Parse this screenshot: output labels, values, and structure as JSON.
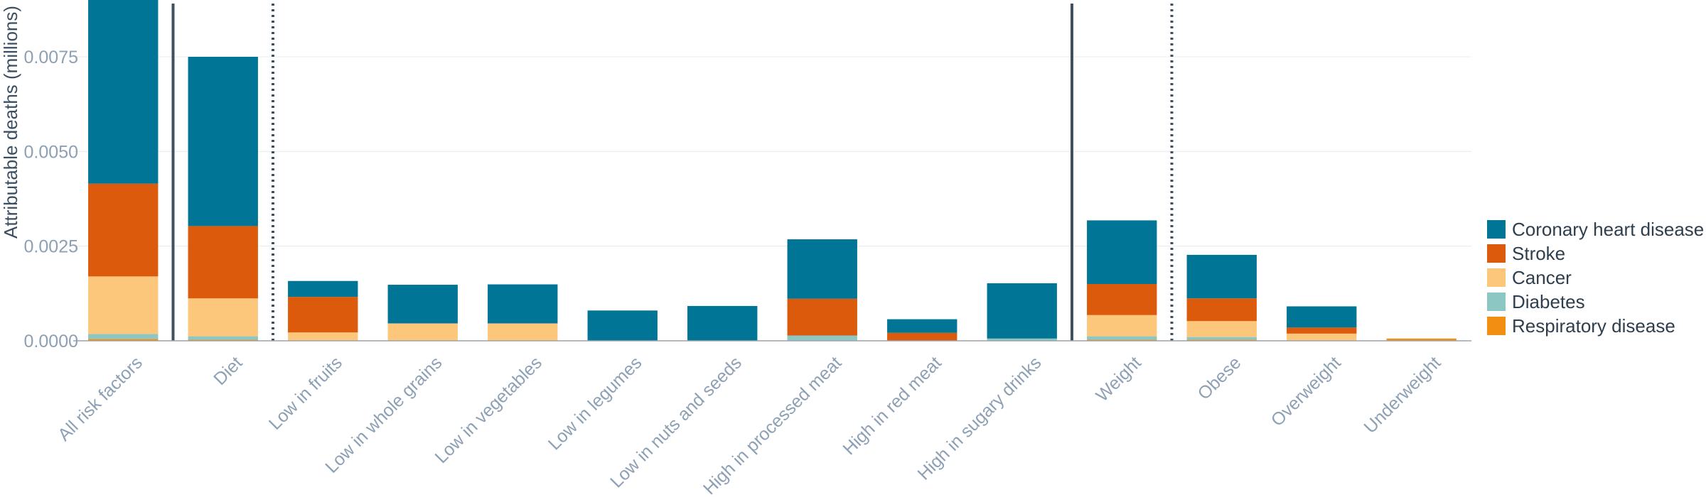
{
  "chart_data": {
    "type": "bar",
    "stacked": true,
    "ylabel": "Attributable deaths (millions)",
    "ylim": [
      0,
      0.009
    ],
    "yticks": [
      "0.0000",
      "0.0025",
      "0.0050",
      "0.0075"
    ],
    "ytick_values": [
      0,
      0.0025,
      0.005,
      0.0075
    ],
    "grid": true,
    "legend_position": "right",
    "categories": [
      "All risk factors",
      "Diet",
      "Low in fruits",
      "Low in whole grains",
      "Low in vegetables",
      "Low in legumes",
      "Low in nuts and seeds",
      "High in processed meat",
      "High in red meat",
      "High in sugary drinks",
      "Weight",
      "Obese",
      "Overweight",
      "Underweight"
    ],
    "series": [
      {
        "name": "Respiratory disease",
        "color": "#f28e12",
        "values": [
          5e-05,
          3e-05,
          0,
          0,
          0,
          0,
          0,
          0,
          0,
          0,
          3e-05,
          3e-05,
          0,
          6e-05
        ]
      },
      {
        "name": "Diabetes",
        "color": "#8cc7c4",
        "values": [
          0.00013,
          9e-05,
          0,
          0,
          0,
          0,
          0,
          0.00014,
          0,
          6e-05,
          9e-05,
          7e-05,
          1e-05,
          0
        ]
      },
      {
        "name": "Cancer",
        "color": "#fcc67b",
        "values": [
          0.00152,
          0.001,
          0.00022,
          0.00046,
          0.00046,
          0,
          0,
          0,
          0,
          0,
          0.00056,
          0.00042,
          0.00018,
          0
        ]
      },
      {
        "name": "Stroke",
        "color": "#dc5a0b",
        "values": [
          0.00245,
          0.00191,
          0.00094,
          0,
          0,
          0,
          0,
          0.00097,
          0.00021,
          0,
          0.00082,
          0.0006,
          0.00016,
          0
        ]
      },
      {
        "name": "Coronary heart disease",
        "color": "#007596",
        "values": [
          0.00485,
          0.00447,
          0.00042,
          0.00102,
          0.00103,
          0.0008,
          0.00092,
          0.00157,
          0.00036,
          0.00146,
          0.00168,
          0.00115,
          0.00056,
          0
        ]
      }
    ],
    "legend_order": [
      "Coronary heart disease",
      "Stroke",
      "Cancer",
      "Diabetes",
      "Respiratory disease"
    ],
    "separators": [
      {
        "after_index": 0,
        "style": "solid"
      },
      {
        "after_index": 1,
        "style": "dotted"
      },
      {
        "after_index": 9,
        "style": "solid"
      },
      {
        "after_index": 10,
        "style": "dotted"
      }
    ]
  }
}
